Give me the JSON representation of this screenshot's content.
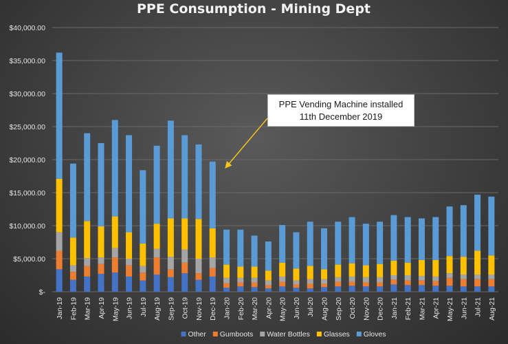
{
  "chart_data": {
    "type": "bar",
    "stacked": true,
    "title": "PPE Consumption - Mining Dept",
    "xlabel": "",
    "ylabel": "",
    "ylim": [
      0,
      40000
    ],
    "yticks": [
      0,
      5000,
      10000,
      15000,
      20000,
      25000,
      30000,
      35000,
      40000
    ],
    "ytick_labels": [
      "$-",
      "$5,000.00",
      "$10,000.00",
      "$15,000.00",
      "$20,000.00",
      "$25,000.00",
      "$30,000.00",
      "$35,000.00",
      "$40,000.00"
    ],
    "grid": true,
    "legend_position": "bottom",
    "categories": [
      "Jan-19",
      "Feb-19",
      "Mar-19",
      "Apr-19",
      "May-19",
      "Jun-19",
      "Jul-19",
      "Aug-19",
      "Sep-19",
      "Oct-19",
      "Nov-19",
      "Dec-19",
      "Jan-20",
      "Feb-20",
      "Mar-20",
      "Apr-20",
      "May-20",
      "Jun-20",
      "Jul-20",
      "Aug-20",
      "Sep-20",
      "Oct-20",
      "Nov-20",
      "Dec-20",
      "Jan-21",
      "Feb-21",
      "Mar-21",
      "Apr-21",
      "May-21",
      "Jun-21",
      "Jul-21",
      "Aug-21"
    ],
    "series": [
      {
        "name": "Other",
        "color": "#4472c4",
        "values": [
          3400,
          1800,
          2300,
          2700,
          2900,
          2300,
          1700,
          2600,
          2200,
          2800,
          1800,
          2300,
          600,
          800,
          700,
          500,
          800,
          600,
          500,
          700,
          800,
          900,
          800,
          800,
          1100,
          1000,
          1000,
          900,
          900,
          800,
          800,
          800
        ]
      },
      {
        "name": "Gumboots",
        "color": "#ed7d31",
        "values": [
          2800,
          1200,
          1600,
          1500,
          2300,
          1700,
          1200,
          2600,
          1200,
          1600,
          1000,
          1300,
          700,
          600,
          700,
          500,
          700,
          500,
          700,
          500,
          700,
          600,
          600,
          600,
          700,
          700,
          700,
          700,
          1200,
          1100,
          1100,
          1100
        ]
      },
      {
        "name": "Water Bottles",
        "color": "#a5a5a5",
        "values": [
          2800,
          1000,
          1200,
          1000,
          1400,
          1000,
          1000,
          1300,
          1900,
          2000,
          2200,
          1600,
          800,
          700,
          700,
          700,
          800,
          600,
          700,
          700,
          700,
          800,
          800,
          800,
          700,
          800,
          700,
          700,
          700,
          700,
          700,
          700
        ]
      },
      {
        "name": "Glasses",
        "color": "#ffc000",
        "values": [
          8100,
          4200,
          5600,
          4700,
          4800,
          4000,
          3400,
          3800,
          5800,
          4700,
          6000,
          4400,
          2000,
          1700,
          1700,
          1500,
          2100,
          1800,
          2000,
          1500,
          1900,
          2000,
          1800,
          2000,
          2200,
          1900,
          2400,
          2500,
          2600,
          2700,
          3600,
          2900
        ]
      },
      {
        "name": "Gloves",
        "color": "#5b9bd5",
        "values": [
          19100,
          11200,
          13300,
          12600,
          14600,
          14700,
          11100,
          11800,
          14800,
          12600,
          11300,
          10100,
          5300,
          5600,
          4700,
          4400,
          5700,
          5500,
          6700,
          6200,
          6500,
          7000,
          6300,
          6400,
          6900,
          6900,
          6300,
          6500,
          7500,
          7800,
          8500,
          8900
        ]
      }
    ],
    "annotation": {
      "line1": "PPE Vending Machine installed",
      "line2": "11th December 2019",
      "points_to": "Dec-19"
    }
  }
}
